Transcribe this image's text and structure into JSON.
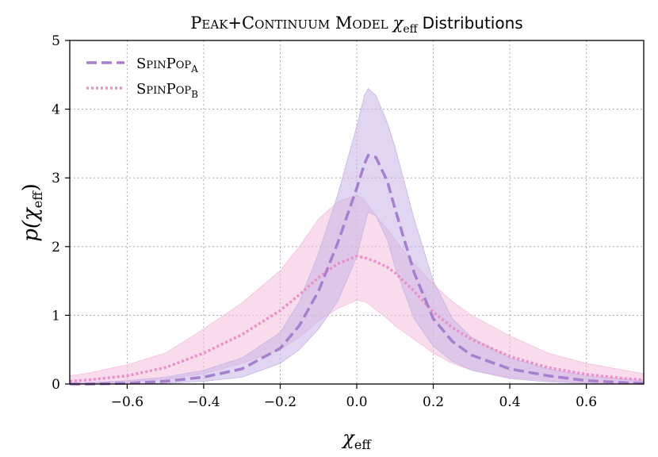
{
  "chart_data": {
    "type": "line",
    "title": {
      "main": "Peak+Continuum Model",
      "symbol": "χ",
      "symbol_sub": "eff",
      "tail": "Distributions"
    },
    "xlabel": {
      "symbol": "χ",
      "sub": "eff"
    },
    "ylabel": {
      "prefix": "p(",
      "symbol": "χ",
      "sub": "eff",
      "suffix": ")"
    },
    "xlim": [
      -0.75,
      0.75
    ],
    "ylim": [
      0,
      5
    ],
    "xticks": [
      -0.6,
      -0.4,
      -0.2,
      0.0,
      0.2,
      0.4,
      0.6
    ],
    "xtick_labels": [
      "−0.6",
      "−0.4",
      "−0.2",
      "0.0",
      "0.2",
      "0.4",
      "0.6"
    ],
    "yticks": [
      0,
      1,
      2,
      3,
      4,
      5
    ],
    "ytick_labels": [
      "0",
      "1",
      "2",
      "3",
      "4",
      "5"
    ],
    "grid": true,
    "legend_position": "top-left",
    "x": [
      -0.75,
      -0.7,
      -0.6,
      -0.5,
      -0.4,
      -0.3,
      -0.2,
      -0.15,
      -0.1,
      -0.05,
      0.0,
      0.02,
      0.03,
      0.05,
      0.08,
      0.1,
      0.15,
      0.2,
      0.25,
      0.3,
      0.4,
      0.5,
      0.6,
      0.7,
      0.75
    ],
    "series": [
      {
        "name": "SpinPop",
        "name_sub": "A",
        "style": "dashed",
        "color": "#a77fcf",
        "band_color": "#c7b4e6",
        "median": [
          0.0,
          0.0,
          0.01,
          0.04,
          0.1,
          0.22,
          0.52,
          0.85,
          1.35,
          2.05,
          2.85,
          3.2,
          3.33,
          3.3,
          2.95,
          2.55,
          1.62,
          0.95,
          0.62,
          0.42,
          0.22,
          0.12,
          0.05,
          0.02,
          0.01
        ],
        "lower": [
          0.0,
          0.0,
          0.0,
          0.01,
          0.04,
          0.1,
          0.3,
          0.5,
          0.8,
          1.2,
          1.85,
          2.3,
          2.5,
          2.45,
          2.1,
          1.7,
          0.95,
          0.55,
          0.33,
          0.2,
          0.08,
          0.03,
          0.01,
          0.0,
          0.0
        ],
        "upper": [
          0.01,
          0.02,
          0.05,
          0.1,
          0.2,
          0.38,
          0.75,
          1.2,
          1.9,
          2.75,
          3.75,
          4.2,
          4.3,
          4.2,
          3.8,
          3.45,
          2.4,
          1.5,
          0.95,
          0.68,
          0.38,
          0.22,
          0.12,
          0.07,
          0.05
        ]
      },
      {
        "name": "SpinPop",
        "name_sub": "B",
        "style": "dotted",
        "color": "#ec8ec8",
        "band_color": "#f4bfdc",
        "median": [
          0.04,
          0.06,
          0.12,
          0.24,
          0.45,
          0.72,
          1.07,
          1.3,
          1.55,
          1.75,
          1.86,
          1.84,
          1.82,
          1.78,
          1.7,
          1.62,
          1.35,
          1.05,
          0.82,
          0.65,
          0.4,
          0.24,
          0.14,
          0.08,
          0.06
        ],
        "lower": [
          0.0,
          0.01,
          0.03,
          0.07,
          0.15,
          0.3,
          0.5,
          0.68,
          0.92,
          1.1,
          1.22,
          1.2,
          1.17,
          1.08,
          0.95,
          0.85,
          0.65,
          0.45,
          0.3,
          0.2,
          0.1,
          0.05,
          0.02,
          0.01,
          0.01
        ],
        "upper": [
          0.12,
          0.16,
          0.28,
          0.45,
          0.8,
          1.18,
          1.65,
          2.0,
          2.4,
          2.65,
          2.75,
          2.68,
          2.6,
          2.45,
          2.25,
          2.1,
          1.75,
          1.45,
          1.2,
          1.0,
          0.7,
          0.45,
          0.3,
          0.2,
          0.15
        ]
      }
    ]
  }
}
